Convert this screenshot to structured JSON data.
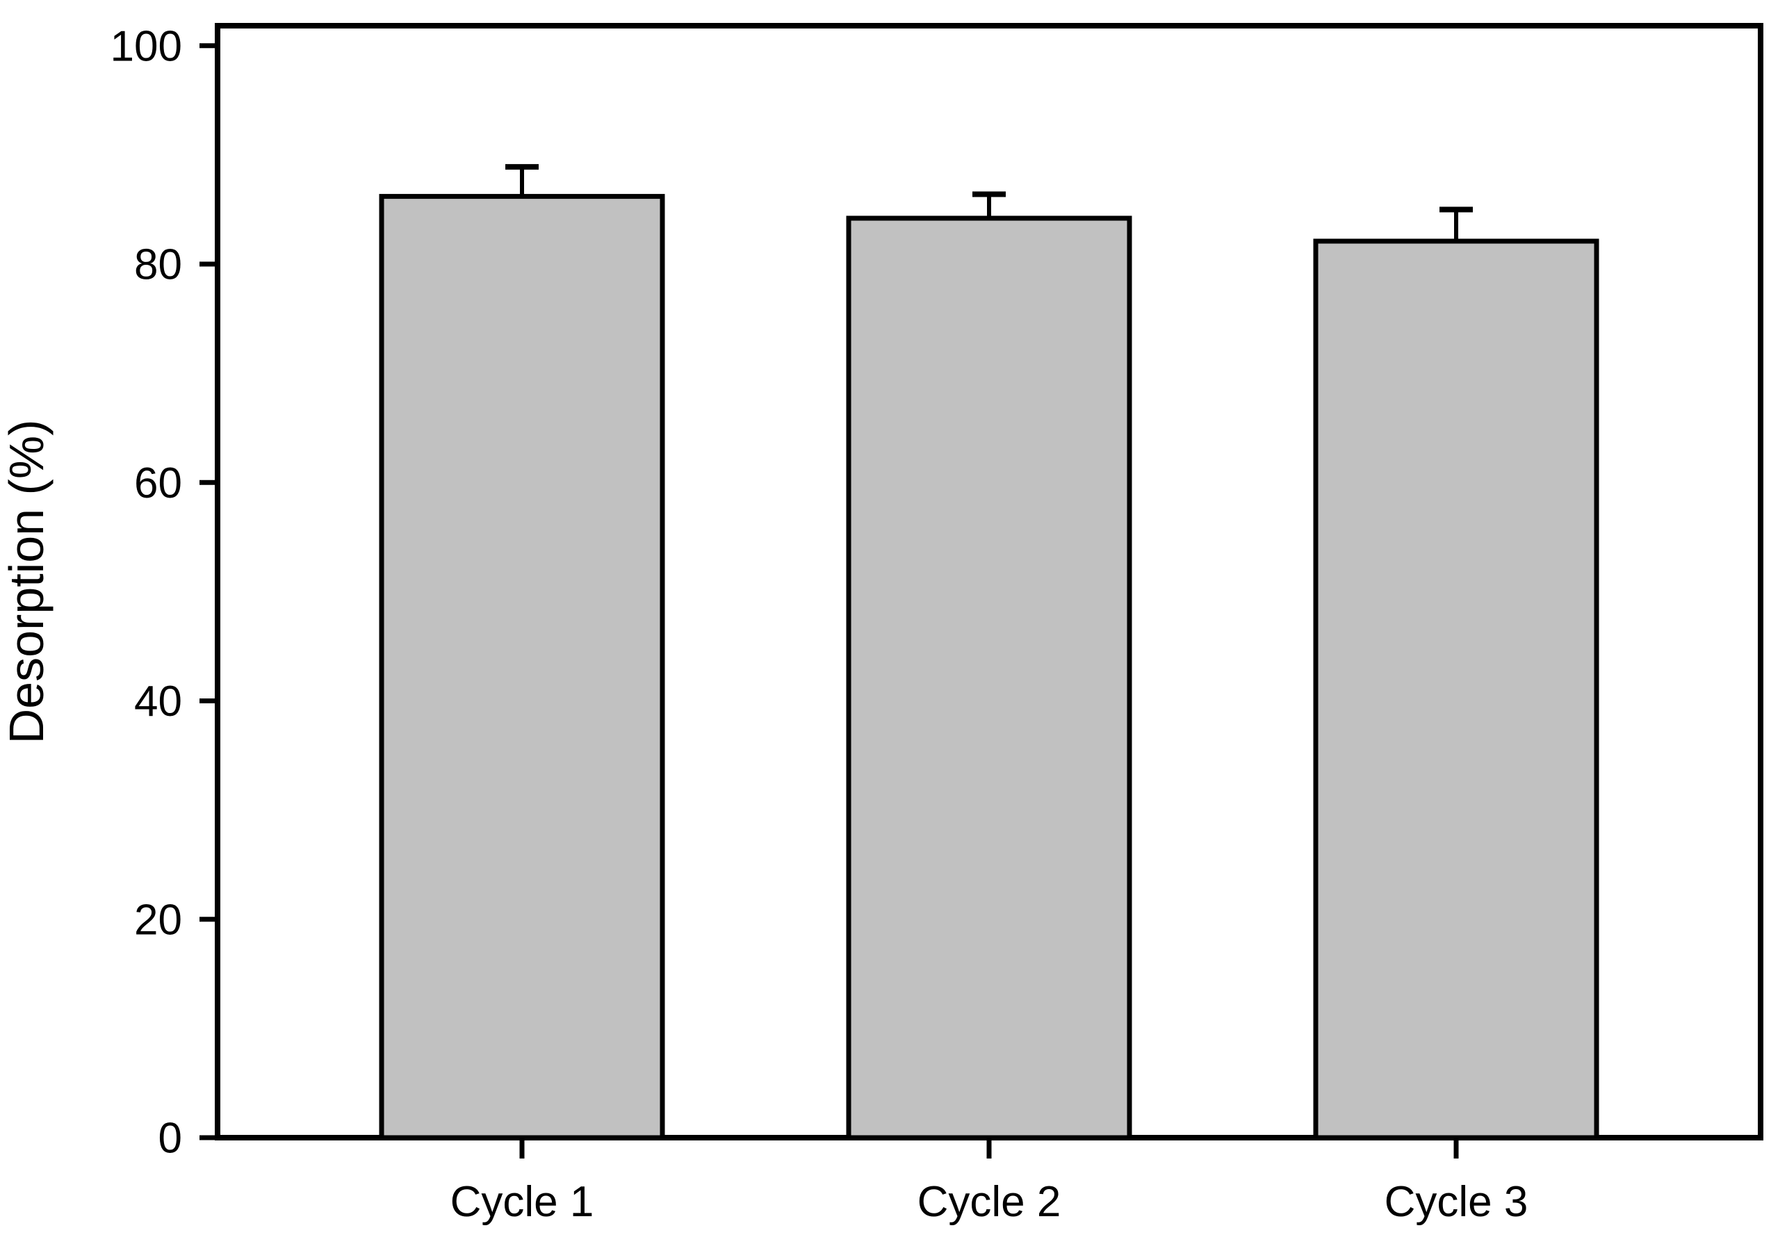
{
  "chart_data": {
    "type": "bar",
    "title": "",
    "xlabel": "",
    "ylabel": "Desorption (%)",
    "categories": [
      "Cycle 1",
      "Cycle 2",
      "Cycle 3"
    ],
    "values": [
      86.2,
      84.2,
      82.1
    ],
    "errors_plus": [
      2.7,
      2.2,
      2.9
    ],
    "yticks": [
      0,
      20,
      40,
      60,
      80,
      100
    ],
    "ylim": [
      0,
      101.8
    ],
    "grid": false,
    "legend": null,
    "bar_fill_color": "#c1c1c1",
    "line_color": "#000000",
    "background_color": "#ffffff"
  }
}
